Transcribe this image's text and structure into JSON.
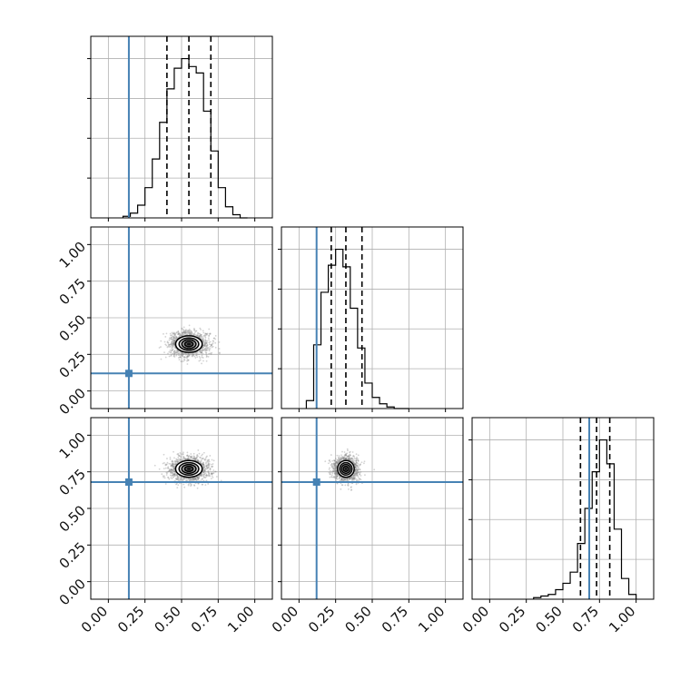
{
  "chart_data": {
    "type": "corner",
    "colors": {
      "truth": "#4682b4",
      "hist": "#000000",
      "quantile": "#000000",
      "grid": "#b0b0b0",
      "scatter": "#808080"
    },
    "grid": true,
    "tick_labels": [
      "0.00",
      "0.25",
      "0.50",
      "0.75",
      "1.00"
    ],
    "tick_values": [
      0,
      0.25,
      0.5,
      0.75,
      1.0
    ],
    "xlim": [
      -0.12,
      1.12
    ],
    "parameters": [
      {
        "truth": 0.14,
        "quantiles": [
          0.4,
          0.55,
          0.7
        ]
      },
      {
        "truth": 0.12,
        "quantiles": [
          0.22,
          0.32,
          0.43
        ]
      },
      {
        "truth": 0.68,
        "quantiles": [
          0.62,
          0.73,
          0.82
        ]
      }
    ],
    "histograms": [
      {
        "param": 0,
        "bin_edges": [
          0.1,
          0.15,
          0.2,
          0.25,
          0.3,
          0.35,
          0.4,
          0.45,
          0.5,
          0.55,
          0.6,
          0.65,
          0.7,
          0.75,
          0.8,
          0.85,
          0.9,
          0.95
        ],
        "counts": [
          0.01,
          0.03,
          0.08,
          0.19,
          0.37,
          0.6,
          0.81,
          0.94,
          1.0,
          0.95,
          0.91,
          0.67,
          0.42,
          0.19,
          0.07,
          0.02,
          0.0
        ]
      },
      {
        "param": 1,
        "bin_edges": [
          0.05,
          0.1,
          0.15,
          0.2,
          0.25,
          0.3,
          0.35,
          0.4,
          0.45,
          0.5,
          0.55,
          0.6,
          0.65,
          0.7,
          0.75
        ],
        "counts": [
          0.05,
          0.4,
          0.73,
          0.9,
          1.0,
          0.89,
          0.63,
          0.38,
          0.16,
          0.07,
          0.03,
          0.01,
          0.0,
          0.0
        ]
      },
      {
        "param": 2,
        "bin_edges": [
          0.3,
          0.35,
          0.4,
          0.45,
          0.5,
          0.55,
          0.6,
          0.65,
          0.7,
          0.75,
          0.8,
          0.85,
          0.9,
          0.95,
          1.0
        ],
        "counts": [
          0.01,
          0.02,
          0.03,
          0.06,
          0.1,
          0.17,
          0.35,
          0.57,
          0.8,
          1.0,
          0.85,
          0.44,
          0.13,
          0.03
        ]
      }
    ],
    "joint": [
      {
        "x_param": 0,
        "y_param": 1,
        "center": [
          0.55,
          0.32
        ],
        "spread": [
          0.16,
          0.1
        ]
      },
      {
        "x_param": 0,
        "y_param": 2,
        "center": [
          0.55,
          0.77
        ],
        "spread": [
          0.16,
          0.1
        ]
      },
      {
        "x_param": 1,
        "y_param": 2,
        "center": [
          0.32,
          0.77
        ],
        "spread": [
          0.1,
          0.1
        ]
      }
    ]
  }
}
